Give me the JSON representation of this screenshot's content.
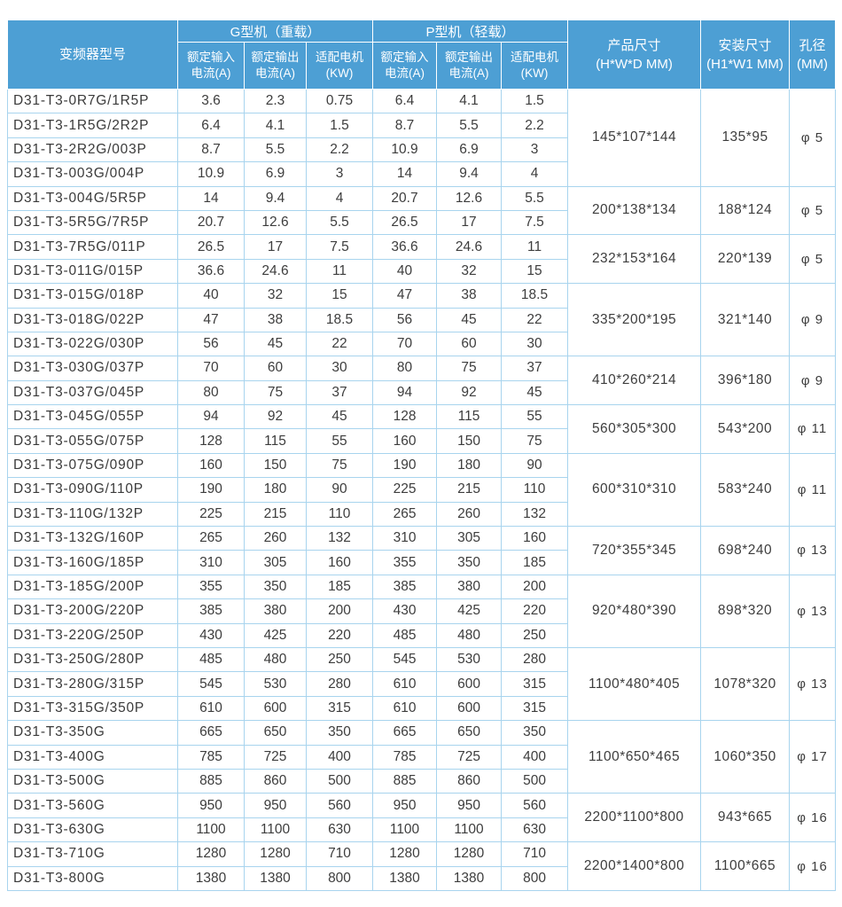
{
  "colors": {
    "header_bg": "#4d9fd4",
    "header_text": "#ffffff",
    "body_border": "#a8d4ee",
    "body_text": "#3d3d3d",
    "row_bg": "#ffffff"
  },
  "table": {
    "headers": {
      "model": "变频器型号",
      "g_group": "G型机（重载）",
      "p_group": "P型机（轻载）",
      "g_input": "额定输入\n电流(A)",
      "g_output": "额定输出\n电流(A)",
      "g_motor": "适配电机\n(KW)",
      "p_input": "额定输入\n电流(A)",
      "p_output": "额定输出\n电流(A)",
      "p_motor": "适配电机\n(KW)",
      "product_size": "产品尺寸\n(H*W*D MM)",
      "mount_size": "安装尺寸\n(H1*W1 MM)",
      "hole": "孔径\n(MM)"
    },
    "rows": [
      {
        "model": "D31-T3-0R7G/1R5P",
        "g": [
          "3.6",
          "2.3",
          "0.75"
        ],
        "p": [
          "6.4",
          "4.1",
          "1.5"
        ]
      },
      {
        "model": "D31-T3-1R5G/2R2P",
        "g": [
          "6.4",
          "4.1",
          "1.5"
        ],
        "p": [
          "8.7",
          "5.5",
          "2.2"
        ]
      },
      {
        "model": "D31-T3-2R2G/003P",
        "g": [
          "8.7",
          "5.5",
          "2.2"
        ],
        "p": [
          "10.9",
          "6.9",
          "3"
        ]
      },
      {
        "model": "D31-T3-003G/004P",
        "g": [
          "10.9",
          "6.9",
          "3"
        ],
        "p": [
          "14",
          "9.4",
          "4"
        ]
      },
      {
        "model": "D31-T3-004G/5R5P",
        "g": [
          "14",
          "9.4",
          "4"
        ],
        "p": [
          "20.7",
          "12.6",
          "5.5"
        ]
      },
      {
        "model": "D31-T3-5R5G/7R5P",
        "g": [
          "20.7",
          "12.6",
          "5.5"
        ],
        "p": [
          "26.5",
          "17",
          "7.5"
        ]
      },
      {
        "model": "D31-T3-7R5G/011P",
        "g": [
          "26.5",
          "17",
          "7.5"
        ],
        "p": [
          "36.6",
          "24.6",
          "11"
        ]
      },
      {
        "model": "D31-T3-011G/015P",
        "g": [
          "36.6",
          "24.6",
          "11"
        ],
        "p": [
          "40",
          "32",
          "15"
        ]
      },
      {
        "model": "D31-T3-015G/018P",
        "g": [
          "40",
          "32",
          "15"
        ],
        "p": [
          "47",
          "38",
          "18.5"
        ]
      },
      {
        "model": "D31-T3-018G/022P",
        "g": [
          "47",
          "38",
          "18.5"
        ],
        "p": [
          "56",
          "45",
          "22"
        ]
      },
      {
        "model": "D31-T3-022G/030P",
        "g": [
          "56",
          "45",
          "22"
        ],
        "p": [
          "70",
          "60",
          "30"
        ]
      },
      {
        "model": "D31-T3-030G/037P",
        "g": [
          "70",
          "60",
          "30"
        ],
        "p": [
          "80",
          "75",
          "37"
        ]
      },
      {
        "model": "D31-T3-037G/045P",
        "g": [
          "80",
          "75",
          "37"
        ],
        "p": [
          "94",
          "92",
          "45"
        ]
      },
      {
        "model": "D31-T3-045G/055P",
        "g": [
          "94",
          "92",
          "45"
        ],
        "p": [
          "128",
          "115",
          "55"
        ]
      },
      {
        "model": "D31-T3-055G/075P",
        "g": [
          "128",
          "115",
          "55"
        ],
        "p": [
          "160",
          "150",
          "75"
        ]
      },
      {
        "model": "D31-T3-075G/090P",
        "g": [
          "160",
          "150",
          "75"
        ],
        "p": [
          "190",
          "180",
          "90"
        ]
      },
      {
        "model": "D31-T3-090G/110P",
        "g": [
          "190",
          "180",
          "90"
        ],
        "p": [
          "225",
          "215",
          "110"
        ]
      },
      {
        "model": "D31-T3-110G/132P",
        "g": [
          "225",
          "215",
          "110"
        ],
        "p": [
          "265",
          "260",
          "132"
        ]
      },
      {
        "model": "D31-T3-132G/160P",
        "g": [
          "265",
          "260",
          "132"
        ],
        "p": [
          "310",
          "305",
          "160"
        ]
      },
      {
        "model": "D31-T3-160G/185P",
        "g": [
          "310",
          "305",
          "160"
        ],
        "p": [
          "355",
          "350",
          "185"
        ]
      },
      {
        "model": "D31-T3-185G/200P",
        "g": [
          "355",
          "350",
          "185"
        ],
        "p": [
          "385",
          "380",
          "200"
        ]
      },
      {
        "model": "D31-T3-200G/220P",
        "g": [
          "385",
          "380",
          "200"
        ],
        "p": [
          "430",
          "425",
          "220"
        ]
      },
      {
        "model": "D31-T3-220G/250P",
        "g": [
          "430",
          "425",
          "220"
        ],
        "p": [
          "485",
          "480",
          "250"
        ]
      },
      {
        "model": "D31-T3-250G/280P",
        "g": [
          "485",
          "480",
          "250"
        ],
        "p": [
          "545",
          "530",
          "280"
        ]
      },
      {
        "model": "D31-T3-280G/315P",
        "g": [
          "545",
          "530",
          "280"
        ],
        "p": [
          "610",
          "600",
          "315"
        ]
      },
      {
        "model": "D31-T3-315G/350P",
        "g": [
          "610",
          "600",
          "315"
        ],
        "p": [
          "610",
          "600",
          "315"
        ]
      },
      {
        "model": "D31-T3-350G",
        "g": [
          "665",
          "650",
          "350"
        ],
        "p": [
          "665",
          "650",
          "350"
        ]
      },
      {
        "model": "D31-T3-400G",
        "g": [
          "785",
          "725",
          "400"
        ],
        "p": [
          "785",
          "725",
          "400"
        ]
      },
      {
        "model": "D31-T3-500G",
        "g": [
          "885",
          "860",
          "500"
        ],
        "p": [
          "885",
          "860",
          "500"
        ]
      },
      {
        "model": "D31-T3-560G",
        "g": [
          "950",
          "950",
          "560"
        ],
        "p": [
          "950",
          "950",
          "560"
        ]
      },
      {
        "model": "D31-T3-630G",
        "g": [
          "1100",
          "1100",
          "630"
        ],
        "p": [
          "1100",
          "1100",
          "630"
        ]
      },
      {
        "model": "D31-T3-710G",
        "g": [
          "1280",
          "1280",
          "710"
        ],
        "p": [
          "1280",
          "1280",
          "710"
        ]
      },
      {
        "model": "D31-T3-800G",
        "g": [
          "1380",
          "1380",
          "800"
        ],
        "p": [
          "1380",
          "1380",
          "800"
        ]
      }
    ],
    "groups": [
      {
        "start": 0,
        "span": 4,
        "size": "145*107*144",
        "mount": "135*95",
        "hole": "φ 5"
      },
      {
        "start": 4,
        "span": 2,
        "size": "200*138*134",
        "mount": "188*124",
        "hole": "φ 5"
      },
      {
        "start": 6,
        "span": 2,
        "size": "232*153*164",
        "mount": "220*139",
        "hole": "φ 5"
      },
      {
        "start": 8,
        "span": 3,
        "size": "335*200*195",
        "mount": "321*140",
        "hole": "φ 9"
      },
      {
        "start": 11,
        "span": 2,
        "size": "410*260*214",
        "mount": "396*180",
        "hole": "φ 9"
      },
      {
        "start": 13,
        "span": 2,
        "size": "560*305*300",
        "mount": "543*200",
        "hole": "φ 11"
      },
      {
        "start": 15,
        "span": 3,
        "size": "600*310*310",
        "mount": "583*240",
        "hole": "φ 11"
      },
      {
        "start": 18,
        "span": 2,
        "size": "720*355*345",
        "mount": "698*240",
        "hole": "φ 13"
      },
      {
        "start": 20,
        "span": 3,
        "size": "920*480*390",
        "mount": "898*320",
        "hole": "φ 13"
      },
      {
        "start": 23,
        "span": 3,
        "size": "1100*480*405",
        "mount": "1078*320",
        "hole": "φ 13"
      },
      {
        "start": 26,
        "span": 3,
        "size": "1100*650*465",
        "mount": "1060*350",
        "hole": "φ 17"
      },
      {
        "start": 29,
        "span": 2,
        "size": "2200*1100*800",
        "mount": "943*665",
        "hole": "φ 16"
      },
      {
        "start": 31,
        "span": 2,
        "size": "2200*1400*800",
        "mount": "1100*665",
        "hole": "φ 16"
      }
    ]
  }
}
